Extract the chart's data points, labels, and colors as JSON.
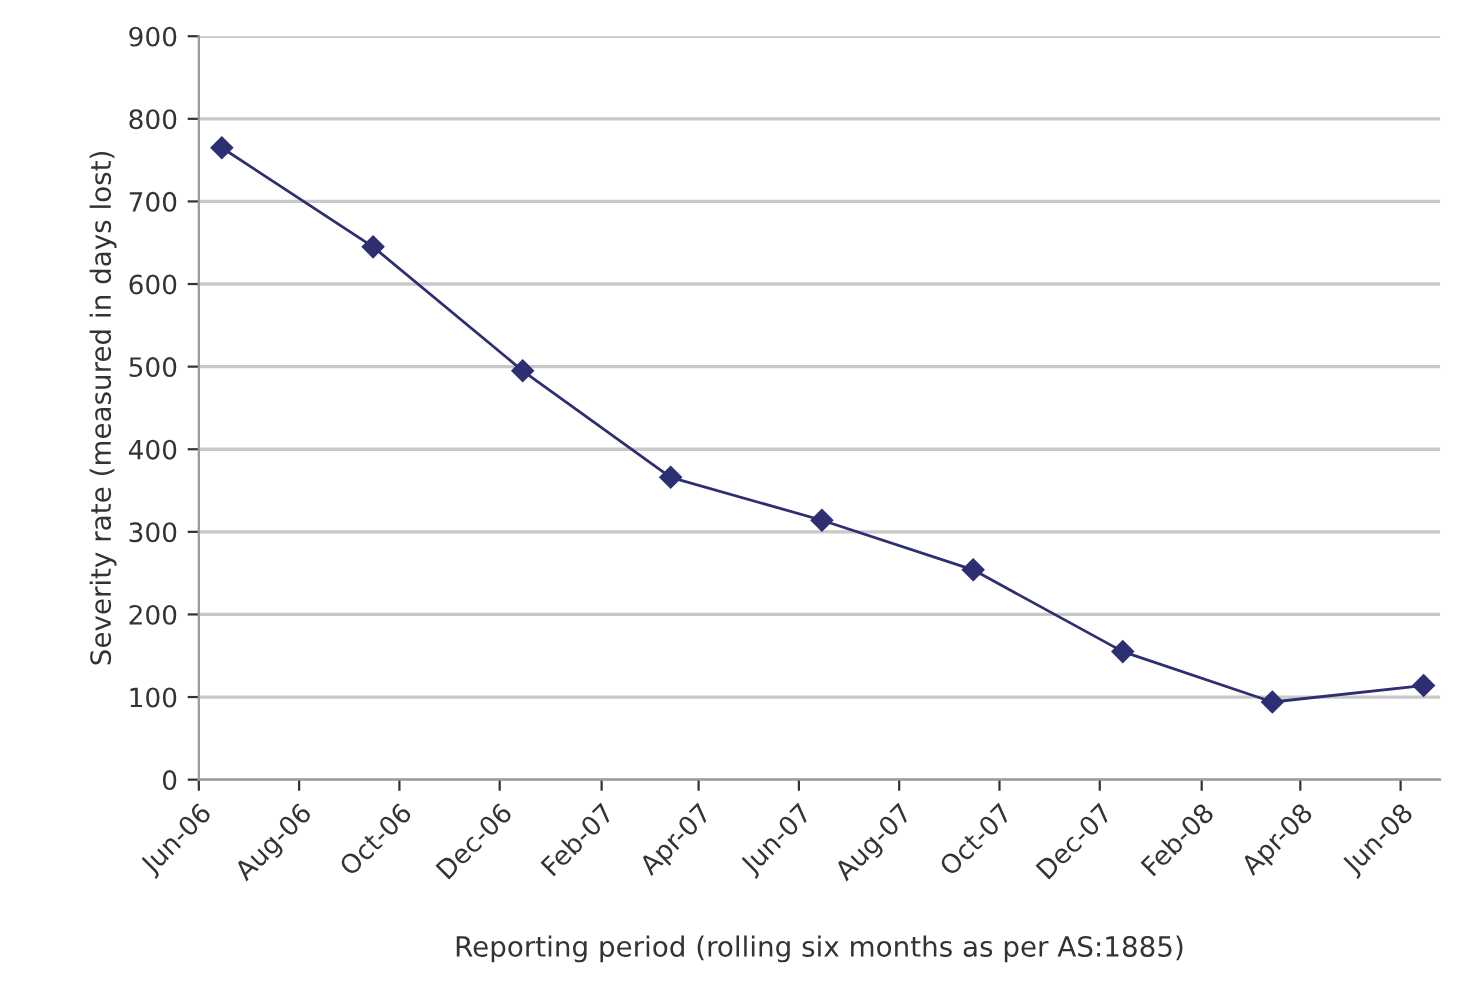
{
  "chart_data": {
    "type": "line",
    "xlabel": "Reporting period (rolling six months as per AS:1885)",
    "ylabel": "Severity rate (measured in days lost)",
    "x": [
      "2006-06-15",
      "2006-09-15",
      "2006-12-15",
      "2007-03-15",
      "2007-06-15",
      "2007-09-15",
      "2007-12-15",
      "2008-03-15",
      "2008-06-15"
    ],
    "series": [
      {
        "color": "#2e2e72",
        "values": [
          765,
          645,
          495,
          366,
          314,
          254,
          155,
          94,
          114
        ]
      }
    ],
    "xlim": [
      "2006-06-01",
      "2008-06-25"
    ],
    "xticks": [
      {
        "value": "2006-06-01",
        "label": "Jun-06"
      },
      {
        "value": "2006-08-01",
        "label": "Aug-06"
      },
      {
        "value": "2006-10-01",
        "label": "Oct-06"
      },
      {
        "value": "2006-12-01",
        "label": "Dec-06"
      },
      {
        "value": "2007-02-01",
        "label": "Feb-07"
      },
      {
        "value": "2007-04-01",
        "label": "Apr-07"
      },
      {
        "value": "2007-06-01",
        "label": "Jun-07"
      },
      {
        "value": "2007-08-01",
        "label": "Aug-07"
      },
      {
        "value": "2007-10-01",
        "label": "Oct-07"
      },
      {
        "value": "2007-12-01",
        "label": "Dec-07"
      },
      {
        "value": "2008-02-01",
        "label": "Feb-08"
      },
      {
        "value": "2008-04-01",
        "label": "Apr-08"
      },
      {
        "value": "2008-06-01",
        "label": "Jun-08"
      }
    ],
    "ylim": [
      0,
      900
    ],
    "yticks": [
      0,
      100,
      200,
      300,
      400,
      500,
      600,
      700,
      800,
      900
    ],
    "grid": "y",
    "marker": "diamond",
    "line_style": "solid"
  }
}
